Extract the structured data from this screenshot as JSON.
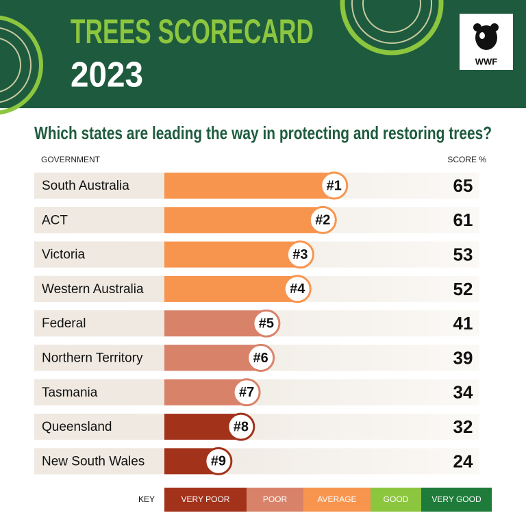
{
  "chart_data": {
    "type": "bar",
    "title": "TREES SCORECARD",
    "year": "2023",
    "logo": "WWF",
    "subtitle": "Which states are leading the way in protecting and restoring trees?",
    "category_header": "GOVERNMENT",
    "value_header": "SCORE %",
    "categories": [
      "South Australia",
      "ACT",
      "Victoria",
      "Western Australia",
      "Federal",
      "Northern Territory",
      "Tasmania",
      "Queensland",
      "New South Wales"
    ],
    "values": [
      65,
      61,
      53,
      52,
      41,
      39,
      34,
      32,
      24
    ],
    "ranks": [
      "#1",
      "#2",
      "#3",
      "#4",
      "#5",
      "#6",
      "#7",
      "#8",
      "#9"
    ],
    "colors": [
      "#f7954f",
      "#f7954f",
      "#f7954f",
      "#f7954f",
      "#d9826a",
      "#d9826a",
      "#d9826a",
      "#a3321b",
      "#a3321b"
    ],
    "key": {
      "label": "KEY",
      "items": [
        {
          "label": "VERY POOR",
          "color": "#a3321b"
        },
        {
          "label": "POOR",
          "color": "#d9826a"
        },
        {
          "label": "AVERAGE",
          "color": "#f7954f"
        },
        {
          "label": "GOOD",
          "color": "#8cc63f"
        },
        {
          "label": "VERY GOOD",
          "color": "#1e7b3a"
        }
      ]
    }
  }
}
